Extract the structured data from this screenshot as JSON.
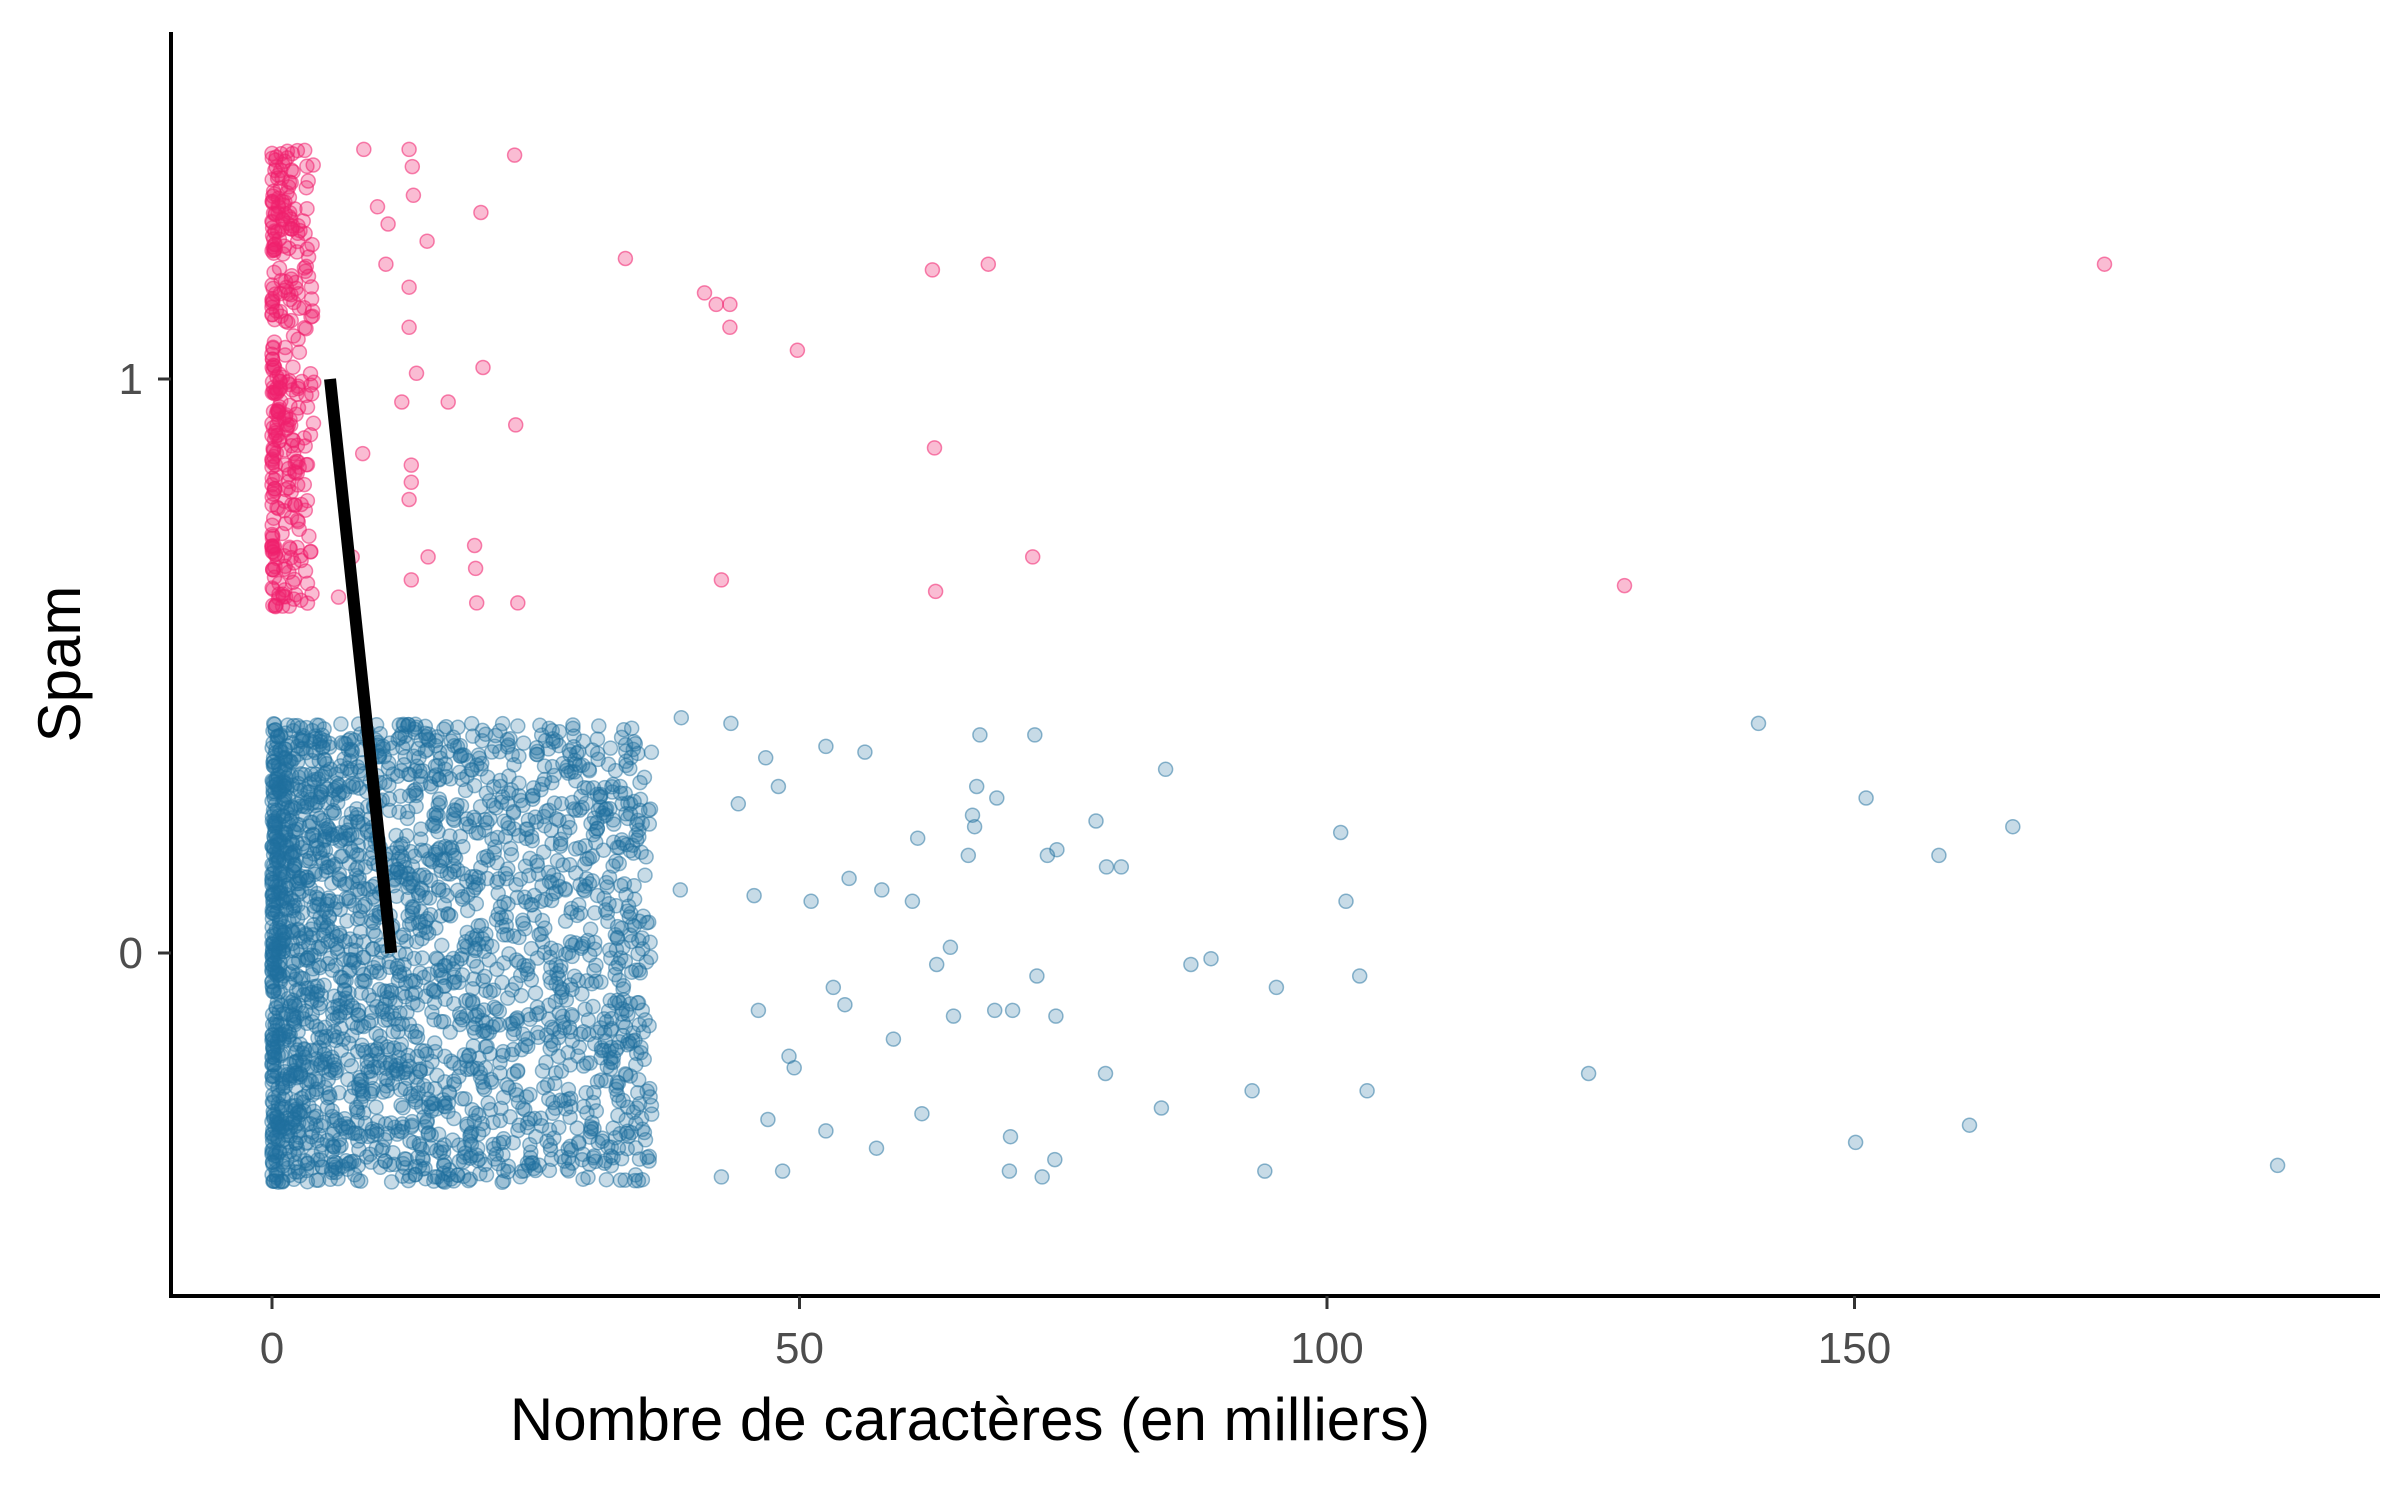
{
  "chart_data": {
    "type": "scatter",
    "title": "",
    "xlabel": "Nombre de caractères (en milliers)",
    "ylabel": "Spam",
    "xlim": [
      -9.5,
      200
    ],
    "ylim": [
      -0.6,
      1.6
    ],
    "x_ticks": [
      0,
      50,
      100,
      150
    ],
    "x_tick_labels": [
      "0",
      "50",
      "100",
      "150"
    ],
    "y_ticks": [
      0,
      1
    ],
    "y_tick_labels": [
      "0",
      "1"
    ],
    "grid": false,
    "legend": "none",
    "jitter": "vertical, ±0.4 around each group",
    "series": [
      {
        "group": 1,
        "color": "#f0206e",
        "opacity": 0.3,
        "highlighted_points": [
          [
            8.7,
            1.4
          ],
          [
            13.0,
            1.4
          ],
          [
            23.0,
            1.39
          ],
          [
            13.3,
            1.37
          ],
          [
            13.4,
            1.32
          ],
          [
            10.0,
            1.3
          ],
          [
            19.8,
            1.29
          ],
          [
            11.0,
            1.27
          ],
          [
            14.7,
            1.24
          ],
          [
            33.5,
            1.21
          ],
          [
            10.8,
            1.2
          ],
          [
            62.6,
            1.19
          ],
          [
            67.9,
            1.2
          ],
          [
            173.7,
            1.2
          ],
          [
            13.0,
            1.16
          ],
          [
            41.0,
            1.15
          ],
          [
            42.1,
            1.13
          ],
          [
            43.4,
            1.13
          ],
          [
            43.4,
            1.09
          ],
          [
            13.0,
            1.09
          ],
          [
            49.8,
            1.05
          ],
          [
            13.7,
            1.01
          ],
          [
            20.0,
            1.02
          ],
          [
            23.1,
            0.92
          ],
          [
            16.7,
            0.96
          ],
          [
            12.3,
            0.96
          ],
          [
            62.8,
            0.88
          ],
          [
            8.6,
            0.87
          ],
          [
            13.2,
            0.85
          ],
          [
            13.2,
            0.82
          ],
          [
            13.0,
            0.79
          ],
          [
            19.2,
            0.71
          ],
          [
            14.8,
            0.69
          ],
          [
            72.1,
            0.69
          ],
          [
            19.3,
            0.67
          ],
          [
            42.6,
            0.65
          ],
          [
            13.2,
            0.65
          ],
          [
            128.2,
            0.64
          ],
          [
            62.9,
            0.63
          ],
          [
            19.4,
            0.61
          ],
          [
            23.3,
            0.61
          ],
          [
            6.3,
            0.62
          ],
          [
            7.6,
            0.69
          ]
        ],
        "cluster_x_range": [
          0,
          4
        ],
        "cluster_n": 340
      },
      {
        "group": 0,
        "color": "#1f6f9e",
        "opacity": 0.25,
        "highlighted_points": [
          [
            140.9,
            0.4
          ],
          [
            151.1,
            0.27
          ],
          [
            158.0,
            0.17
          ],
          [
            165.0,
            0.22
          ],
          [
            101.3,
            0.21
          ],
          [
            101.8,
            0.09
          ],
          [
            103.1,
            -0.04
          ],
          [
            103.8,
            -0.24
          ],
          [
            124.8,
            -0.21
          ],
          [
            150.1,
            -0.33
          ],
          [
            160.9,
            -0.3
          ],
          [
            190.1,
            -0.37
          ],
          [
            94.1,
            -0.38
          ],
          [
            92.9,
            -0.24
          ],
          [
            84.3,
            -0.27
          ],
          [
            79.0,
            -0.21
          ],
          [
            95.2,
            -0.06
          ],
          [
            89.0,
            -0.01
          ],
          [
            87.1,
            -0.02
          ],
          [
            84.7,
            0.32
          ],
          [
            78.1,
            0.23
          ],
          [
            80.5,
            0.15
          ],
          [
            79.1,
            0.15
          ],
          [
            74.4,
            0.18
          ],
          [
            73.5,
            0.17
          ],
          [
            72.3,
            0.38
          ],
          [
            67.1,
            0.38
          ],
          [
            68.7,
            0.27
          ],
          [
            66.8,
            0.29
          ],
          [
            66.4,
            0.24
          ],
          [
            66.0,
            0.17
          ],
          [
            66.6,
            0.22
          ],
          [
            64.3,
            0.01
          ],
          [
            63.0,
            -0.02
          ],
          [
            64.6,
            -0.11
          ],
          [
            68.5,
            -0.1
          ],
          [
            70.2,
            -0.1
          ],
          [
            74.3,
            -0.11
          ],
          [
            72.5,
            -0.04
          ],
          [
            70.0,
            -0.32
          ],
          [
            69.9,
            -0.38
          ],
          [
            73.0,
            -0.39
          ],
          [
            74.2,
            -0.36
          ],
          [
            61.6,
            -0.28
          ],
          [
            57.3,
            -0.34
          ],
          [
            58.9,
            -0.15
          ],
          [
            60.7,
            0.09
          ],
          [
            61.2,
            0.2
          ],
          [
            57.8,
            0.11
          ],
          [
            56.2,
            0.35
          ],
          [
            52.5,
            0.36
          ],
          [
            54.7,
            0.13
          ],
          [
            51.1,
            0.09
          ],
          [
            49.0,
            -0.18
          ],
          [
            49.5,
            -0.2
          ],
          [
            48.0,
            0.29
          ],
          [
            46.8,
            0.34
          ],
          [
            43.5,
            0.4
          ],
          [
            44.2,
            0.26
          ],
          [
            45.7,
            0.1
          ],
          [
            46.1,
            -0.1
          ],
          [
            47.0,
            -0.29
          ],
          [
            48.4,
            -0.38
          ],
          [
            42.6,
            -0.39
          ],
          [
            38.8,
            0.41
          ],
          [
            38.7,
            0.11
          ],
          [
            52.5,
            -0.31
          ],
          [
            53.2,
            -0.06
          ],
          [
            54.3,
            -0.09
          ]
        ],
        "cluster_x_range": [
          0,
          36
        ],
        "cluster_n": 2500
      }
    ],
    "fitted_line": {
      "color": "#000000",
      "points": [
        [
          5.5,
          1.0
        ],
        [
          11.3,
          0.0
        ]
      ]
    }
  }
}
